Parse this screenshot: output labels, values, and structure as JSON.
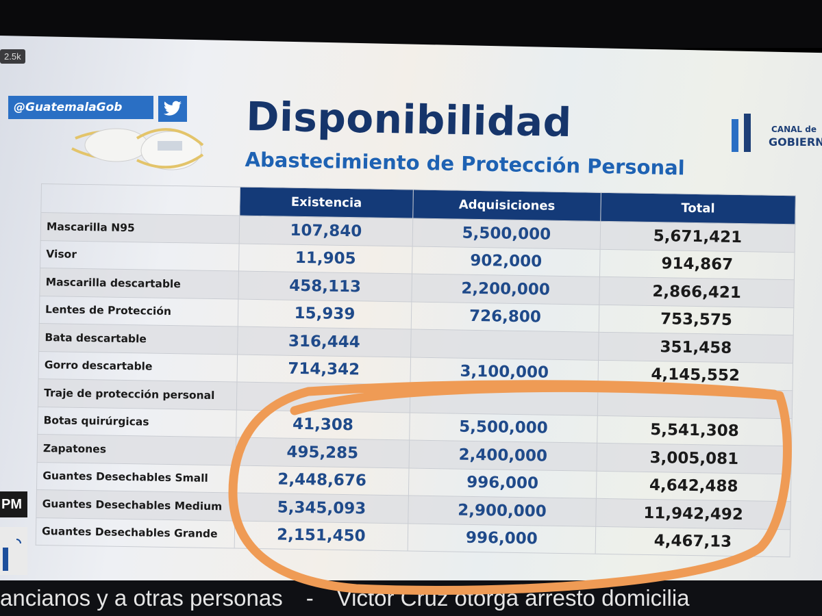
{
  "overlay": {
    "view_count": "2.5k"
  },
  "header": {
    "handle": "@GuatemalaGob",
    "title": "Disponibilidad",
    "subtitle": "Abastecimiento de Protección Personal",
    "channel_logo": {
      "line1": "CANAL de",
      "line2": "GOBIERNO"
    }
  },
  "table": {
    "columns": [
      "Existencia",
      "Adquisiciones",
      "Total"
    ],
    "rows": [
      {
        "item": "Mascarilla N95",
        "existencia": "107,840",
        "adquisiciones": "5,500,000",
        "total": "5,671,421"
      },
      {
        "item": "Visor",
        "existencia": "11,905",
        "adquisiciones": "902,000",
        "total": "914,867"
      },
      {
        "item": "Mascarilla descartable",
        "existencia": "458,113",
        "adquisiciones": "2,200,000",
        "total": "2,866,421"
      },
      {
        "item": "Lentes de Protección",
        "existencia": "15,939",
        "adquisiciones": "726,800",
        "total": "753,575"
      },
      {
        "item": "Bata descartable",
        "existencia": "316,444",
        "adquisiciones": "",
        "total": "351,458"
      },
      {
        "item": "Gorro descartable",
        "existencia": "714,342",
        "adquisiciones": "3,100,000",
        "total": "4,145,552"
      },
      {
        "item": "Traje de protección personal",
        "existencia": "",
        "adquisiciones": "",
        "total": ""
      },
      {
        "item": "Botas quirúrgicas",
        "existencia": "41,308",
        "adquisiciones": "5,500,000",
        "total": "5,541,308"
      },
      {
        "item": "Zapatones",
        "existencia": "495,285",
        "adquisiciones": "2,400,000",
        "total": "3,005,081"
      },
      {
        "item": "Guantes Desechables Small",
        "existencia": "2,448,676",
        "adquisiciones": "996,000",
        "total": "4,642,488"
      },
      {
        "item": "Guantes Desechables Medium",
        "existencia": "5,345,093",
        "adquisiciones": "2,900,000",
        "total": "11,942,492"
      },
      {
        "item": "Guantes Desechables Grande",
        "existencia": "2,151,450",
        "adquisiciones": "996,000",
        "total": "4,467,13"
      }
    ]
  },
  "side": {
    "time_suffix": "PM"
  },
  "ticker": {
    "left": "ancianos y a otras personas",
    "separator": "-",
    "right": "Victor Cruz otorga arresto domicilia"
  },
  "colors": {
    "navy": "#143a78",
    "title": "#16356b",
    "accent_blue": "#1e62b3",
    "annotation": "#ef9b55"
  }
}
